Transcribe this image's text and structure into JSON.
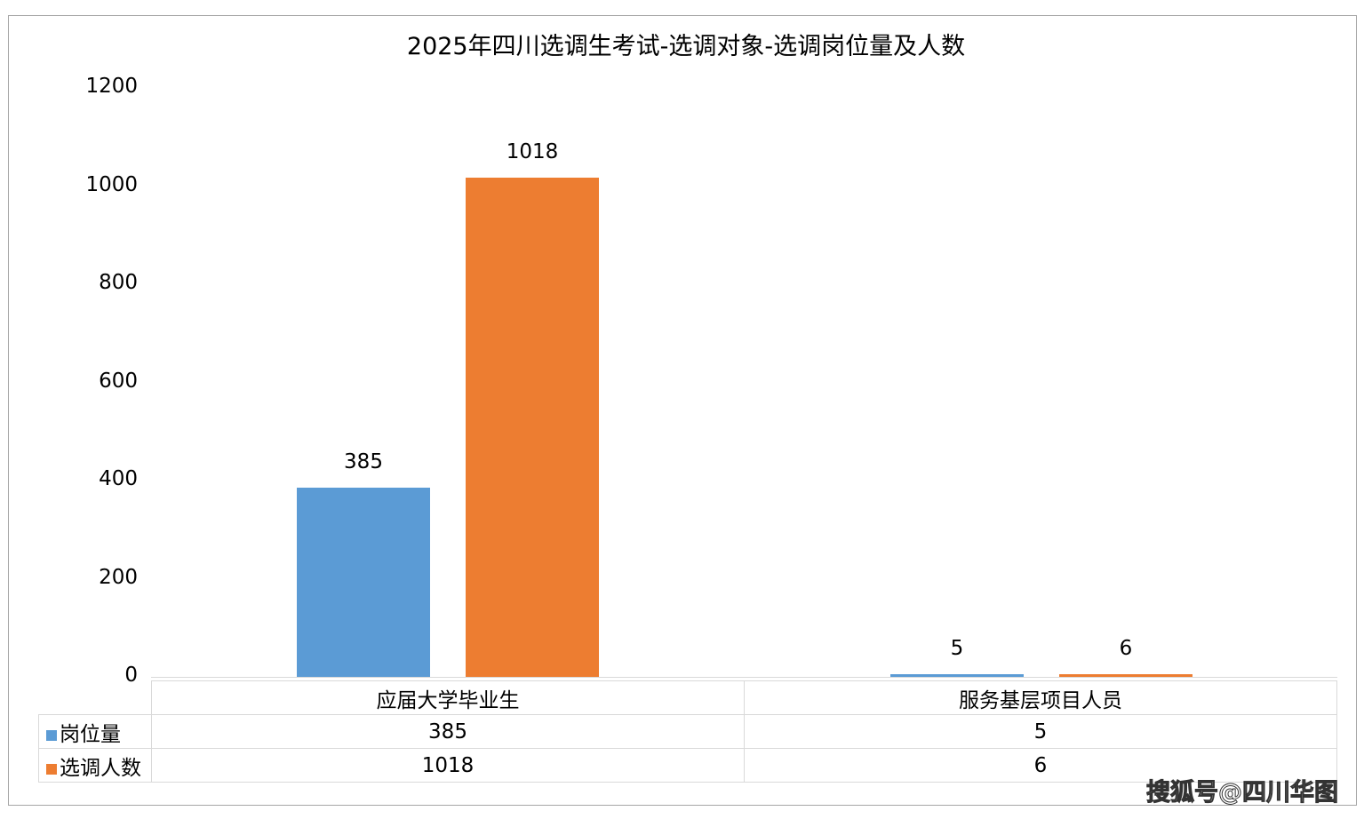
{
  "chart_data": {
    "type": "bar",
    "title": "2025年四川选调生考试-选调对象-选调岗位量及人数",
    "categories": [
      "应届大学毕业生",
      "服务基层项目人员"
    ],
    "series": [
      {
        "name": "岗位量",
        "values": [
          385,
          5
        ],
        "color": "#5b9bd5"
      },
      {
        "name": "选调人数",
        "values": [
          1018,
          6
        ],
        "color": "#ed7d31"
      }
    ],
    "ylim": [
      0,
      1200
    ],
    "yticks": [
      "0",
      "200",
      "400",
      "600",
      "800",
      "1000",
      "1200"
    ],
    "grid": false,
    "legend": "data-table"
  },
  "credit": "搜狐号@四川华图"
}
